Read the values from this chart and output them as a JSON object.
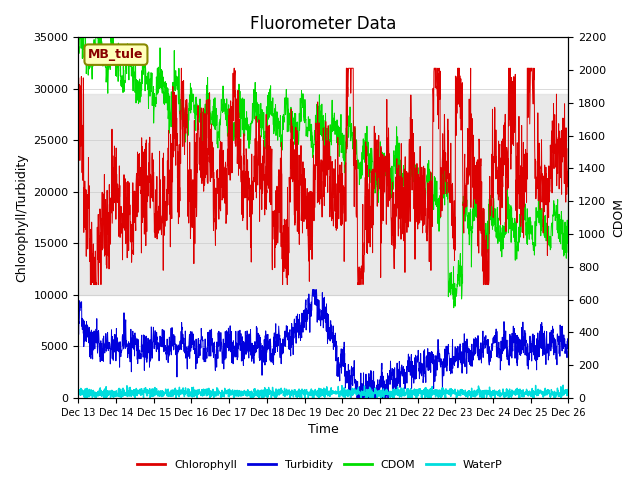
{
  "title": "Fluorometer Data",
  "xlabel": "Time",
  "ylabel_left": "Chlorophyll/Turbidity",
  "ylabel_right": "CDOM",
  "station_label": "MB_tule",
  "xlim_days": [
    0,
    13
  ],
  "ylim_left": [
    0,
    35000
  ],
  "ylim_right": [
    0,
    2200
  ],
  "yticks_left": [
    0,
    5000,
    10000,
    15000,
    20000,
    25000,
    30000,
    35000
  ],
  "yticks_right": [
    0,
    200,
    400,
    600,
    800,
    1000,
    1200,
    1400,
    1600,
    1800,
    2000,
    2200
  ],
  "xtick_labels": [
    "Dec 13",
    "Dec 14",
    "Dec 15",
    "Dec 16",
    "Dec 17",
    "Dec 18",
    "Dec 19",
    "Dec 20",
    "Dec 21",
    "Dec 22",
    "Dec 23",
    "Dec 24",
    "Dec 25",
    "Dec 26"
  ],
  "gray_band_yleft": [
    10000,
    29500
  ],
  "colors": {
    "chlorophyll": "#dd0000",
    "turbidity": "#0000dd",
    "cdom": "#00dd00",
    "waterp": "#00dddd",
    "gray_band": "#e0e0e0"
  },
  "legend_entries": [
    "Chlorophyll",
    "Turbidity",
    "CDOM",
    "WaterP"
  ],
  "background_color": "#ffffff",
  "title_fontsize": 12
}
